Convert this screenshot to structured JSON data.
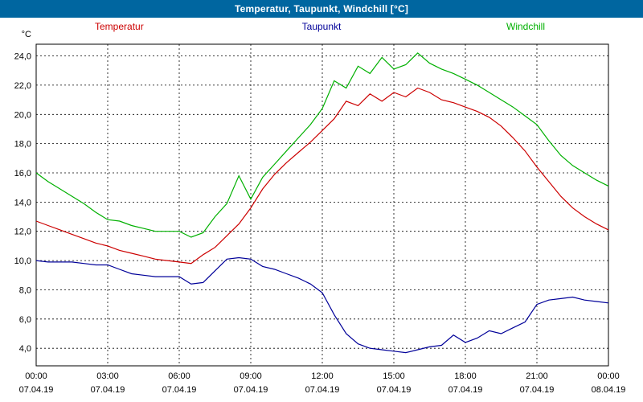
{
  "title_bar": {
    "title": "Temperatur, Taupunkt, Windchill [°C]",
    "bg_color": "#0066a0",
    "text_color": "#ffffff"
  },
  "legend": {
    "items": [
      {
        "label": "Temperatur",
        "color": "#cc0000"
      },
      {
        "label": "Taupunkt",
        "color": "#000099"
      },
      {
        "label": "Windchill",
        "color": "#00b000"
      }
    ]
  },
  "chart_data": {
    "type": "line",
    "title": "Temperatur, Taupunkt, Windchill [°C]",
    "xlabel": "",
    "ylabel": "°C",
    "ylim": [
      2.8,
      24.8
    ],
    "xlim_hours": [
      0,
      24
    ],
    "grid": true,
    "grid_style": "dashed-black",
    "legend_position": "top",
    "y_ticks": [
      {
        "value": 4,
        "label": "4,0"
      },
      {
        "value": 6,
        "label": "6,0"
      },
      {
        "value": 8,
        "label": "8,0"
      },
      {
        "value": 10,
        "label": "10,0"
      },
      {
        "value": 12,
        "label": "12,0"
      },
      {
        "value": 14,
        "label": "14,0"
      },
      {
        "value": 16,
        "label": "16,0"
      },
      {
        "value": 18,
        "label": "18,0"
      },
      {
        "value": 20,
        "label": "20,0"
      },
      {
        "value": 22,
        "label": "22,0"
      },
      {
        "value": 24,
        "label": "24,0"
      }
    ],
    "x_ticks": [
      {
        "hour": 0,
        "time": "00:00",
        "date": "07.04.19"
      },
      {
        "hour": 3,
        "time": "03:00",
        "date": "07.04.19"
      },
      {
        "hour": 6,
        "time": "06:00",
        "date": "07.04.19"
      },
      {
        "hour": 9,
        "time": "09:00",
        "date": "07.04.19"
      },
      {
        "hour": 12,
        "time": "12:00",
        "date": "07.04.19"
      },
      {
        "hour": 15,
        "time": "15:00",
        "date": "07.04.19"
      },
      {
        "hour": 18,
        "time": "18:00",
        "date": "07.04.19"
      },
      {
        "hour": 21,
        "time": "21:00",
        "date": "07.04.19"
      },
      {
        "hour": 24,
        "time": "00:00",
        "date": "08.04.19"
      }
    ],
    "x_step_hours": 0.5,
    "series": [
      {
        "name": "Temperatur",
        "color": "#cc0000",
        "values": [
          12.7,
          12.4,
          12.1,
          11.8,
          11.5,
          11.2,
          11.0,
          10.7,
          10.5,
          10.3,
          10.1,
          10.0,
          9.9,
          9.8,
          10.4,
          10.9,
          11.7,
          12.5,
          13.6,
          14.9,
          15.9,
          16.7,
          17.4,
          18.1,
          18.9,
          19.7,
          20.9,
          20.6,
          21.4,
          20.9,
          21.5,
          21.2,
          21.8,
          21.5,
          21.0,
          20.8,
          20.5,
          20.2,
          19.8,
          19.2,
          18.4,
          17.5,
          16.4,
          15.4,
          14.4,
          13.6,
          13.0,
          12.5,
          12.1
        ]
      },
      {
        "name": "Taupunkt",
        "color": "#000099",
        "values": [
          10.0,
          9.9,
          9.9,
          9.9,
          9.8,
          9.7,
          9.7,
          9.4,
          9.1,
          9.0,
          8.9,
          8.9,
          8.9,
          8.4,
          8.5,
          9.3,
          10.1,
          10.2,
          10.1,
          9.6,
          9.4,
          9.1,
          8.8,
          8.4,
          7.8,
          6.3,
          5.0,
          4.3,
          4.0,
          3.9,
          3.8,
          3.7,
          3.9,
          4.1,
          4.2,
          4.9,
          4.4,
          4.7,
          5.2,
          5.0,
          5.4,
          5.8,
          7.0,
          7.3,
          7.4,
          7.5,
          7.3,
          7.2,
          7.1
        ]
      },
      {
        "name": "Windchill",
        "color": "#00b000",
        "values": [
          16.0,
          15.4,
          14.9,
          14.4,
          13.9,
          13.3,
          12.8,
          12.7,
          12.4,
          12.2,
          12.0,
          12.0,
          12.0,
          11.6,
          11.9,
          13.0,
          13.9,
          15.8,
          14.2,
          15.7,
          16.6,
          17.5,
          18.4,
          19.3,
          20.4,
          22.3,
          21.8,
          23.3,
          22.8,
          23.9,
          23.1,
          23.4,
          24.2,
          23.5,
          23.1,
          22.8,
          22.4,
          22.0,
          21.5,
          21.0,
          20.5,
          19.9,
          19.3,
          18.2,
          17.2,
          16.5,
          16.0,
          15.5,
          15.1
        ]
      }
    ]
  }
}
